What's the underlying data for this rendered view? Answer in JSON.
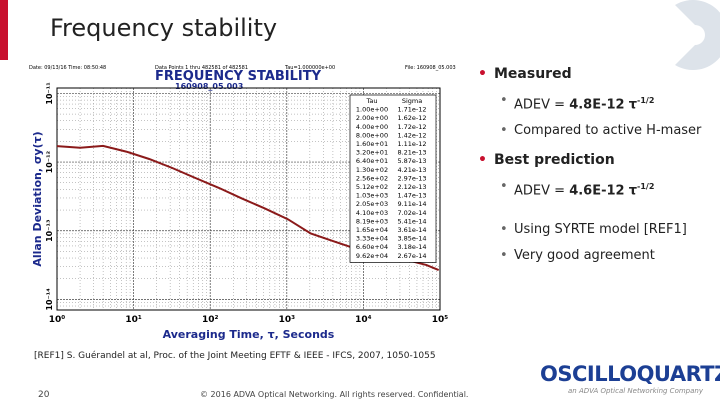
{
  "slide": {
    "title": "Frequency stability",
    "footnote": "[REF1] S. Guérandel at al, Proc. of the Joint Meeting EFTF & IEEE - IFCS, 2007, 1050-1055",
    "page_number": "20",
    "copyright": "© 2016 ADVA Optical Networking. All rights reserved. Confidential.",
    "logo": {
      "name": "OSCILLOQUARTZ",
      "tagline": "an ADVA Optical Networking Company"
    }
  },
  "plot": {
    "header": {
      "date": "Date: 09/13/16   Time: 08:50:48",
      "points": "Data Points 1 thru 482581 of 482581",
      "tau": "Tau=1.000000e+00",
      "file": "File: 160908_05.003"
    },
    "title": "FREQUENCY STABILITY",
    "subtitle": "160908_05.003",
    "ylabel": "Allan Deviation, σy(τ)",
    "xlabel": "Averaging Time, τ, Seconds",
    "xlim": [
      1,
      100000
    ],
    "ylim": [
      7e-15,
      1.2e-11
    ],
    "log_scale": true,
    "grid": true,
    "line_color": "#8b1a1a",
    "xticks": [
      {
        "value": 1,
        "label": "10⁰"
      },
      {
        "value": 10,
        "label": "10¹"
      },
      {
        "value": 100,
        "label": "10²"
      },
      {
        "value": 1000,
        "label": "10³"
      },
      {
        "value": 10000,
        "label": "10⁴"
      },
      {
        "value": 100000,
        "label": "10⁵"
      }
    ],
    "yticks": [
      {
        "value": 1e-11,
        "label": "10⁻¹¹"
      },
      {
        "value": 1e-12,
        "label": "10⁻¹²"
      },
      {
        "value": 1e-13,
        "label": "10⁻¹³"
      },
      {
        "value": 1e-14,
        "label": "10⁻¹⁴"
      }
    ],
    "table": {
      "header": [
        "Tau",
        "Sigma"
      ],
      "rows": [
        [
          "1.00e+00",
          "1.71e-12"
        ],
        [
          "2.00e+00",
          "1.62e-12"
        ],
        [
          "4.00e+00",
          "1.72e-12"
        ],
        [
          "8.00e+00",
          "1.42e-12"
        ],
        [
          "1.60e+01",
          "1.11e-12"
        ],
        [
          "3.20e+01",
          "8.21e-13"
        ],
        [
          "6.40e+01",
          "5.87e-13"
        ],
        [
          "1.30e+02",
          "4.21e-13"
        ],
        [
          "2.56e+02",
          "2.97e-13"
        ],
        [
          "5.12e+02",
          "2.12e-13"
        ],
        [
          "1.03e+03",
          "1.47e-13"
        ],
        [
          "2.05e+03",
          "9.11e-14"
        ],
        [
          "4.10e+03",
          "7.02e-14"
        ],
        [
          "8.19e+03",
          "5.41e-14"
        ],
        [
          "1.65e+04",
          "3.61e-14"
        ],
        [
          "3.33e+04",
          "3.85e-14"
        ],
        [
          "6.60e+04",
          "3.18e-14"
        ],
        [
          "9.62e+04",
          "2.67e-14"
        ]
      ]
    }
  },
  "bullets": [
    {
      "text": "Measured",
      "items": [
        {
          "prefix": "ADEV =",
          "value": "4.8E-12",
          "symbol": "τ",
          "exponent": "-1/2"
        },
        {
          "text": "Compared to active H-maser"
        }
      ]
    },
    {
      "text": "Best prediction",
      "items": [
        {
          "prefix": "ADEV =",
          "value": "4.6E-12",
          "symbol": "τ",
          "exponent": "-1/2"
        },
        {
          "text": "Using SYRTE model [REF1]"
        },
        {
          "text": "Very good agreement"
        }
      ]
    }
  ]
}
